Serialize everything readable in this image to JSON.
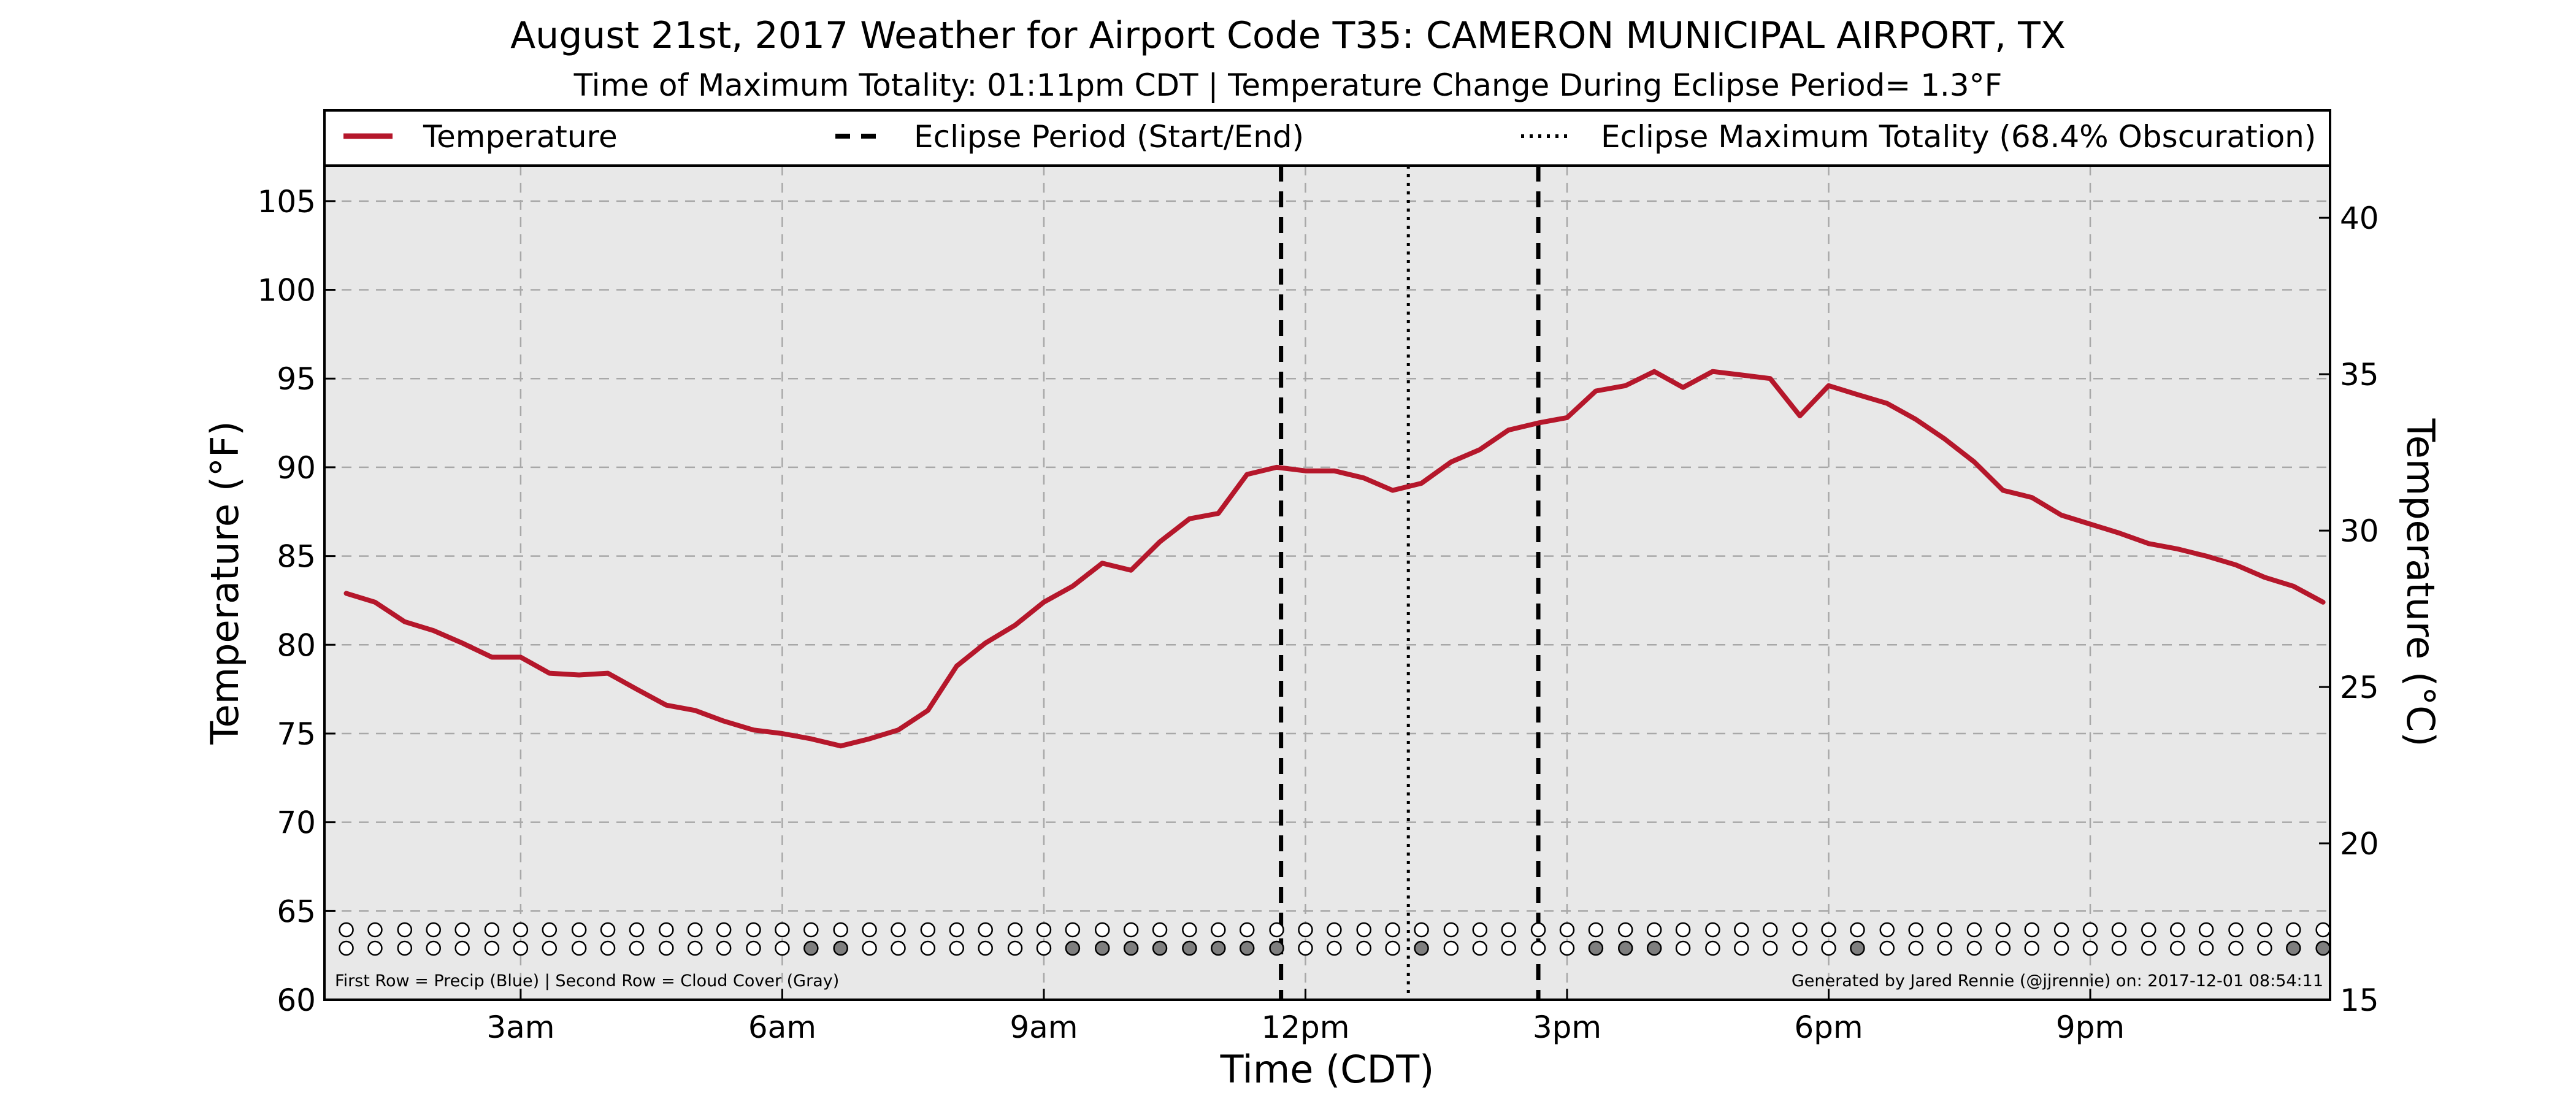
{
  "chart_data": {
    "type": "line",
    "title": "August 21st, 2017 Weather for Airport Code T35: CAMERON MUNICIPAL AIRPORT, TX",
    "subtitle": "Time of Maximum Totality: 01:11pm CDT | Temperature Change During Eclipse Period= 1.3°F",
    "xlabel": "Time (CDT)",
    "ylabel": "Temperature (°F)",
    "ylabel_right": "Temperature (°C)",
    "xlim": [
      0.75,
      23.75
    ],
    "ylim": [
      60,
      107
    ],
    "ylim_right": [
      15,
      41.67
    ],
    "grid": true,
    "x_ticks": [
      3,
      6,
      9,
      12,
      15,
      18,
      21
    ],
    "x_tick_labels": [
      "3am",
      "6am",
      "9am",
      "12pm",
      "3pm",
      "6pm",
      "9pm"
    ],
    "y_ticks": [
      60,
      65,
      70,
      75,
      80,
      85,
      90,
      95,
      100,
      105
    ],
    "y_tick_labels": [
      "60",
      "65",
      "70",
      "75",
      "80",
      "85",
      "90",
      "95",
      "100",
      "105"
    ],
    "y_ticks_right": [
      15,
      20,
      25,
      30,
      35,
      40
    ],
    "y_tick_labels_right": [
      "15",
      "20",
      "25",
      "30",
      "35",
      "40"
    ],
    "legend": {
      "placement": "top",
      "entries": [
        {
          "label": "Temperature",
          "style": "solid",
          "color": "#b5172b"
        },
        {
          "label": "Eclipse Period (Start/End)",
          "style": "dashed",
          "color": "#000000"
        },
        {
          "label": "Eclipse Maximum Totality (68.4% Obscuration)",
          "style": "dotted",
          "color": "#000000"
        }
      ]
    },
    "series": [
      {
        "name": "Temperature",
        "color": "#b5172b",
        "x": [
          1.0,
          1.33,
          1.67,
          2.0,
          2.33,
          2.67,
          3.0,
          3.33,
          3.67,
          4.0,
          4.33,
          4.67,
          5.0,
          5.33,
          5.67,
          6.0,
          6.33,
          6.67,
          7.0,
          7.33,
          7.67,
          8.0,
          8.33,
          8.67,
          9.0,
          9.33,
          9.67,
          10.0,
          10.33,
          10.67,
          11.0,
          11.33,
          11.67,
          12.0,
          12.33,
          12.67,
          13.0,
          13.33,
          13.67,
          14.0,
          14.33,
          14.67,
          15.0,
          15.33,
          15.67,
          16.0,
          16.33,
          16.67,
          17.0,
          17.33,
          17.67,
          18.0,
          18.33,
          18.67,
          19.0,
          19.33,
          19.67,
          20.0,
          20.33,
          20.67,
          21.0,
          21.33,
          21.67,
          22.0,
          22.33,
          22.67,
          23.0,
          23.33,
          23.67
        ],
        "values": [
          82.9,
          82.4,
          81.3,
          80.8,
          80.1,
          79.3,
          79.3,
          78.4,
          78.3,
          78.4,
          77.5,
          76.6,
          76.3,
          75.7,
          75.2,
          75.0,
          74.7,
          74.3,
          74.7,
          75.2,
          76.3,
          78.8,
          80.1,
          81.1,
          82.4,
          83.3,
          84.6,
          84.2,
          85.8,
          87.1,
          87.4,
          89.6,
          90.0,
          89.8,
          89.8,
          89.4,
          88.7,
          89.1,
          90.3,
          91.0,
          92.1,
          92.5,
          92.8,
          94.3,
          94.6,
          95.4,
          94.5,
          95.4,
          95.2,
          95.0,
          92.9,
          94.6,
          94.1,
          93.6,
          92.7,
          91.6,
          90.3,
          88.7,
          88.3,
          87.3,
          86.8,
          86.3,
          85.7,
          85.4,
          85.0,
          84.5,
          83.8,
          83.3,
          82.4
        ]
      }
    ],
    "eclipse_start": 11.72,
    "eclipse_max": 13.18,
    "eclipse_end": 14.67,
    "precip_row": [
      0,
      0,
      0,
      0,
      0,
      0,
      0,
      0,
      0,
      0,
      0,
      0,
      0,
      0,
      0,
      0,
      0,
      0,
      0,
      0,
      0,
      0,
      0,
      0,
      0,
      0,
      0,
      0,
      0,
      0,
      0,
      0,
      0,
      0,
      0,
      0,
      0,
      0,
      0,
      0,
      0,
      0,
      0,
      0,
      0,
      0,
      0,
      0,
      0,
      0,
      0,
      0,
      0,
      0,
      0,
      0,
      0,
      0,
      0,
      0,
      0,
      0,
      0,
      0,
      0,
      0,
      0,
      0,
      0
    ],
    "cloud_row": [
      0,
      0,
      0,
      0,
      0,
      0,
      0,
      0,
      0,
      0,
      0,
      0,
      0,
      0,
      0,
      0,
      1,
      1,
      0,
      0,
      0,
      0,
      0,
      0,
      0,
      1,
      1,
      1,
      1,
      1,
      1,
      1,
      1,
      0,
      0,
      0,
      0,
      1,
      0,
      0,
      0,
      0,
      0,
      1,
      1,
      1,
      0,
      0,
      0,
      0,
      0,
      0,
      1,
      0,
      0,
      0,
      0,
      0,
      0,
      0,
      0,
      0,
      0,
      0,
      0,
      0,
      0,
      1,
      1
    ],
    "footnote_left": "First Row = Precip (Blue) | Second Row = Cloud Cover (Gray)",
    "footnote_right": "Generated by Jared Rennie (@jjrennie) on: 2017-12-01 08:54:11"
  },
  "colors": {
    "plot_background": "#e8e8e8",
    "temperature_line": "#b5172b",
    "grid": "#a8a8a8",
    "cloud_fill": "#7f7f7f",
    "precip_fill": "#1f77b4"
  }
}
